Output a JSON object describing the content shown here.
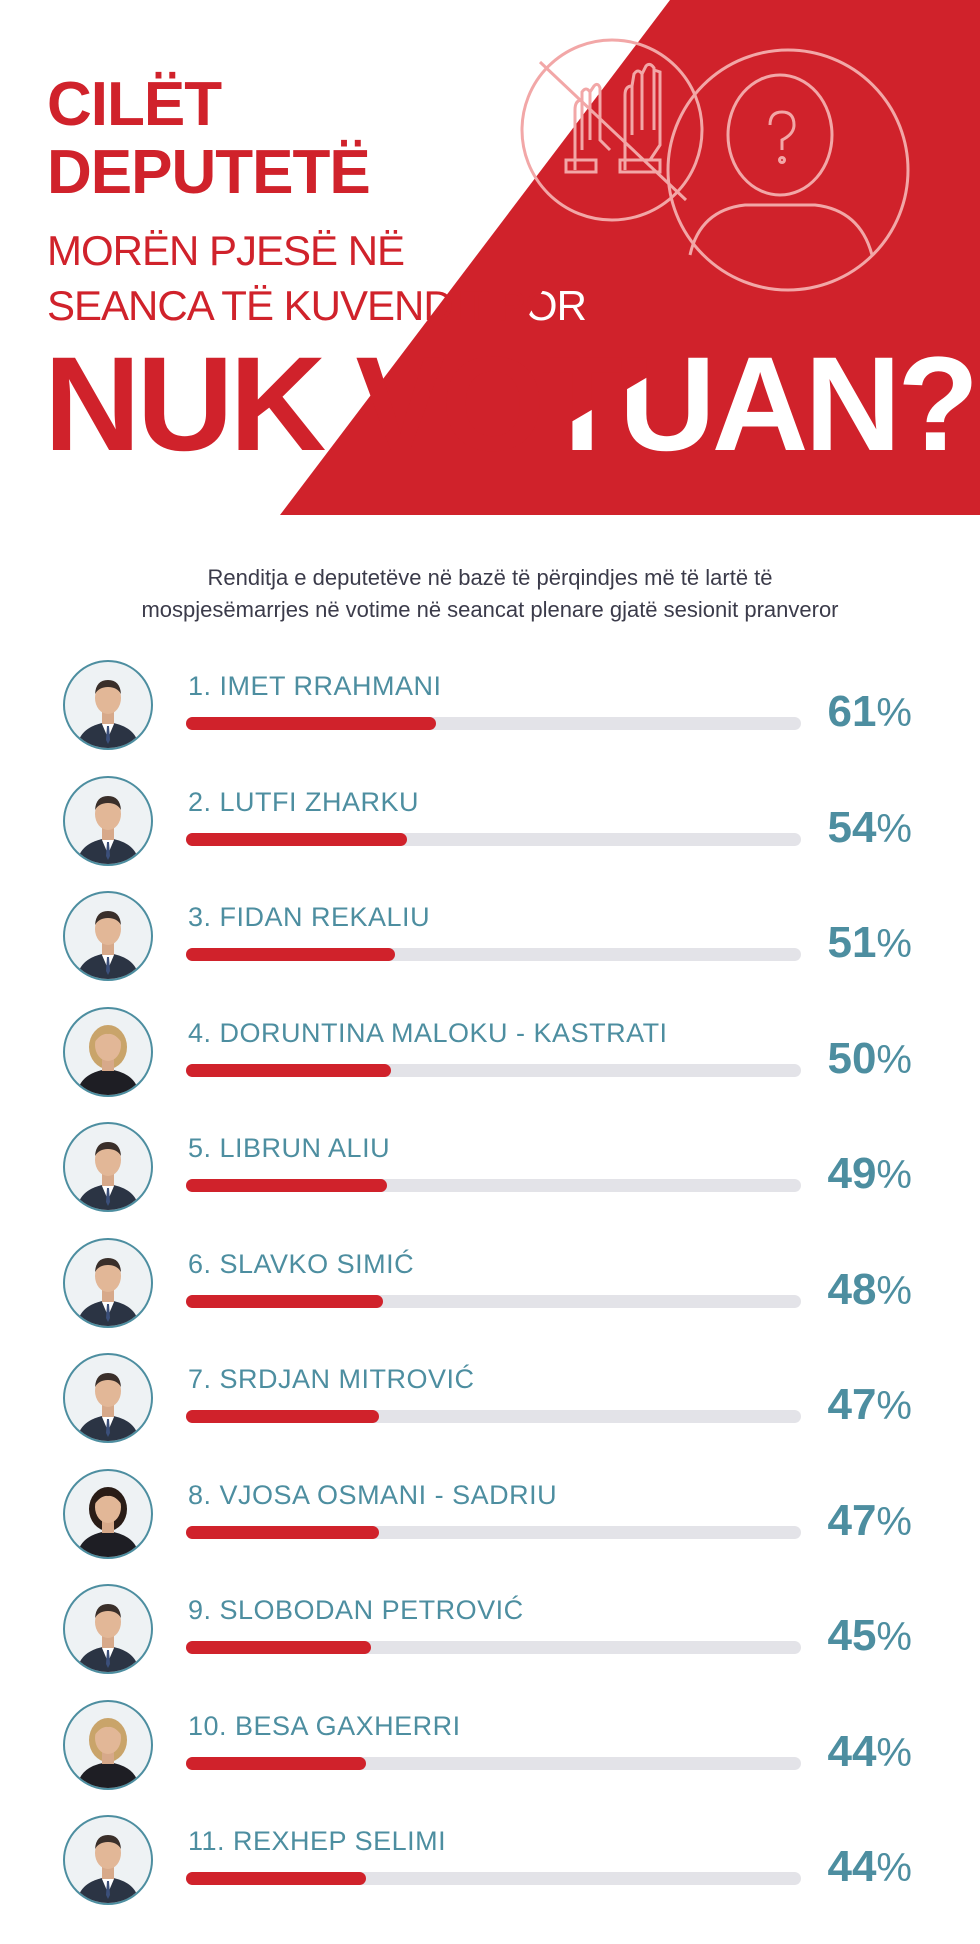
{
  "header": {
    "line1": "CILËT",
    "line2": "DEPUTETË",
    "line3": "MORËN PJESË NË",
    "line4": "SEANCA TË KUVENDIT POR",
    "big": "NUK VOTUAN?"
  },
  "subtitle": {
    "line1": "Renditja e deputetëve në bazë të përqindjes më të lartë të",
    "line2": "mospjesëmarrjes në votime në seancat plenare gjatë sesionit pranveror"
  },
  "colors": {
    "accent": "#d0222b",
    "teal": "#4d8ea0",
    "track": "#e3e3e8"
  },
  "chart_data": {
    "type": "bar",
    "categories": [
      "1. IMET RRAHMANI",
      "2. LUTFI ZHARKU",
      "3. FIDAN REKALIU",
      "4. DORUNTINA MALOKU - KASTRATI",
      "5. LIBRUN ALIU",
      "6. SLAVKO SIMIĆ",
      "7. SRDJAN MITROVIĆ",
      "8. VJOSA OSMANI - SADRIU",
      "9. SLOBODAN PETROVIĆ",
      "10. BESA GAXHERRI",
      "11. REXHEP SELIMI"
    ],
    "values": [
      61,
      54,
      51,
      50,
      49,
      48,
      47,
      47,
      45,
      44,
      44
    ],
    "unit": "%",
    "ylim": [
      0,
      150
    ]
  },
  "people": [
    {
      "name": "1. IMET RRAHMANI",
      "value": "61",
      "unit": "%",
      "gender": "m"
    },
    {
      "name": "2. LUTFI ZHARKU",
      "value": "54",
      "unit": "%",
      "gender": "m"
    },
    {
      "name": "3. FIDAN REKALIU",
      "value": "51",
      "unit": "%",
      "gender": "m"
    },
    {
      "name": "4. DORUNTINA MALOKU - KASTRATI",
      "value": "50",
      "unit": "%",
      "gender": "f"
    },
    {
      "name": "5. LIBRUN ALIU",
      "value": "49",
      "unit": "%",
      "gender": "m"
    },
    {
      "name": "6. SLAVKO SIMIĆ",
      "value": "48",
      "unit": "%",
      "gender": "m"
    },
    {
      "name": "7. SRDJAN MITROVIĆ",
      "value": "47",
      "unit": "%",
      "gender": "m"
    },
    {
      "name": "8. VJOSA OSMANI - SADRIU",
      "value": "47",
      "unit": "%",
      "gender": "f"
    },
    {
      "name": "9. SLOBODAN PETROVIĆ",
      "value": "45",
      "unit": "%",
      "gender": "m"
    },
    {
      "name": "10. BESA GAXHERRI",
      "value": "44",
      "unit": "%",
      "gender": "f"
    },
    {
      "name": "11. REXHEP SELIMI",
      "value": "44",
      "unit": "%",
      "gender": "m"
    }
  ],
  "icons": [
    "raised-hands-icon",
    "anonymous-person-icon",
    "avatar-icon"
  ]
}
